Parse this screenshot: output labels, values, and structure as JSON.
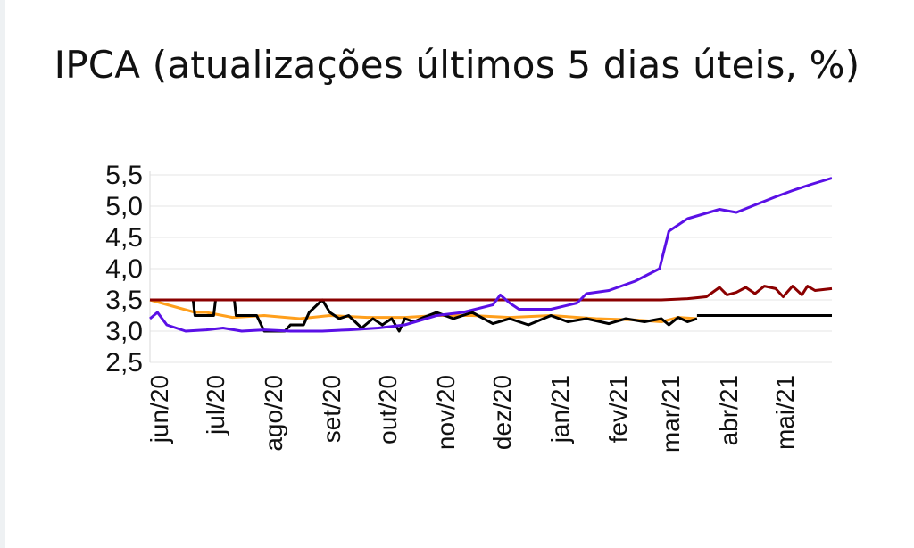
{
  "chart_data": {
    "type": "line",
    "title": "IPCA (atualizações últimos 5 dias úteis, %)",
    "xlabel": "",
    "ylabel": "",
    "ylim": [
      2.5,
      5.5
    ],
    "xlim": [
      "2020-06-01",
      "2021-05-31"
    ],
    "grid": true,
    "legend": "none",
    "yticks": [
      2.5,
      3.0,
      3.5,
      4.0,
      4.5,
      5.0,
      5.5
    ],
    "ytick_labels": [
      "2,5",
      "3,0",
      "3,5",
      "4,0",
      "4,5",
      "5,0",
      "5,5"
    ],
    "xtick_labels": [
      "jun/20",
      "jul/20",
      "ago/20",
      "set/20",
      "out/20",
      "nov/20",
      "dez/20",
      "jan/21",
      "fev/21",
      "mar/21",
      "abr/21",
      "mai/21"
    ],
    "xtick_dates": [
      "2020-06-01",
      "2020-07-01",
      "2020-08-01",
      "2020-09-01",
      "2020-10-01",
      "2020-11-01",
      "2020-12-01",
      "2021-01-01",
      "2021-02-01",
      "2021-03-01",
      "2021-04-01",
      "2021-05-01"
    ],
    "series": [
      {
        "color": "#ff9f1c",
        "x": [
          "2020-06-01",
          "2020-06-25",
          "2020-07-01",
          "2020-07-15",
          "2020-08-01",
          "2020-08-20",
          "2020-09-05",
          "2020-09-25",
          "2020-10-15",
          "2020-11-01",
          "2020-11-20",
          "2020-12-10",
          "2021-01-01",
          "2021-01-25",
          "2021-02-15",
          "2021-03-01",
          "2021-03-10",
          "2021-03-20"
        ],
        "y": [
          3.5,
          3.3,
          3.3,
          3.22,
          3.25,
          3.2,
          3.25,
          3.22,
          3.22,
          3.25,
          3.25,
          3.22,
          3.25,
          3.2,
          3.18,
          3.15,
          3.22,
          3.2
        ]
      },
      {
        "color": "#000000",
        "x": [
          "2020-06-01",
          "2020-06-24",
          "2020-06-25",
          "2020-07-05",
          "2020-07-06",
          "2020-07-16",
          "2020-07-17",
          "2020-07-28",
          "2020-08-01",
          "2020-08-12",
          "2020-08-15",
          "2020-08-22",
          "2020-08-25",
          "2020-09-01",
          "2020-09-05",
          "2020-09-10",
          "2020-09-15",
          "2020-09-22",
          "2020-09-28",
          "2020-10-03",
          "2020-10-08",
          "2020-10-12",
          "2020-10-15",
          "2020-10-20",
          "2020-10-25",
          "2020-11-01",
          "2020-11-10",
          "2020-11-20",
          "2020-12-01",
          "2020-12-10",
          "2020-12-20",
          "2021-01-01",
          "2021-01-10",
          "2021-01-20",
          "2021-02-01",
          "2021-02-10",
          "2021-02-20",
          "2021-03-01",
          "2021-03-05",
          "2021-03-10",
          "2021-03-15",
          "2021-03-20"
        ],
        "y": [
          3.5,
          3.5,
          3.25,
          3.25,
          3.5,
          3.5,
          3.25,
          3.25,
          3.0,
          3.0,
          3.1,
          3.1,
          3.3,
          3.5,
          3.3,
          3.2,
          3.25,
          3.05,
          3.2,
          3.1,
          3.2,
          3.0,
          3.2,
          3.15,
          3.22,
          3.3,
          3.2,
          3.3,
          3.12,
          3.2,
          3.1,
          3.25,
          3.15,
          3.2,
          3.12,
          3.2,
          3.15,
          3.2,
          3.1,
          3.22,
          3.15,
          3.2
        ]
      },
      {
        "color": "#8b0000",
        "x": [
          "2020-06-01",
          "2021-02-01",
          "2021-03-01",
          "2021-03-15",
          "2021-03-25",
          "2021-04-01",
          "2021-04-05",
          "2021-04-10",
          "2021-04-15",
          "2021-04-20",
          "2021-04-25",
          "2021-05-01",
          "2021-05-05",
          "2021-05-10",
          "2021-05-15",
          "2021-05-18",
          "2021-05-22",
          "2021-05-31"
        ],
        "y": [
          3.5,
          3.5,
          3.5,
          3.52,
          3.55,
          3.7,
          3.58,
          3.62,
          3.7,
          3.6,
          3.72,
          3.68,
          3.55,
          3.72,
          3.58,
          3.72,
          3.65,
          3.68
        ]
      },
      {
        "color": "#000000",
        "x": [
          "2021-03-20",
          "2021-05-31"
        ],
        "y": [
          3.25,
          3.25
        ]
      },
      {
        "color": "#5a10e6",
        "x": [
          "2020-06-01",
          "2020-06-05",
          "2020-06-10",
          "2020-06-20",
          "2020-07-01",
          "2020-07-10",
          "2020-07-20",
          "2020-08-01",
          "2020-08-15",
          "2020-09-01",
          "2020-09-15",
          "2020-10-01",
          "2020-10-15",
          "2020-11-01",
          "2020-11-15",
          "2020-12-01",
          "2020-12-05",
          "2020-12-10",
          "2020-12-15",
          "2021-01-01",
          "2021-01-15",
          "2021-01-20",
          "2021-02-01",
          "2021-02-15",
          "2021-02-28",
          "2021-03-05",
          "2021-03-15",
          "2021-04-01",
          "2021-04-10",
          "2021-04-20",
          "2021-05-01",
          "2021-05-10",
          "2021-05-20",
          "2021-05-31"
        ],
        "y": [
          3.2,
          3.3,
          3.1,
          3.0,
          3.02,
          3.05,
          3.0,
          3.02,
          3.0,
          3.0,
          3.02,
          3.05,
          3.1,
          3.25,
          3.3,
          3.42,
          3.58,
          3.45,
          3.35,
          3.35,
          3.45,
          3.6,
          3.65,
          3.8,
          4.0,
          4.6,
          4.8,
          4.95,
          4.9,
          5.02,
          5.15,
          5.25,
          5.35,
          5.45
        ]
      }
    ]
  }
}
